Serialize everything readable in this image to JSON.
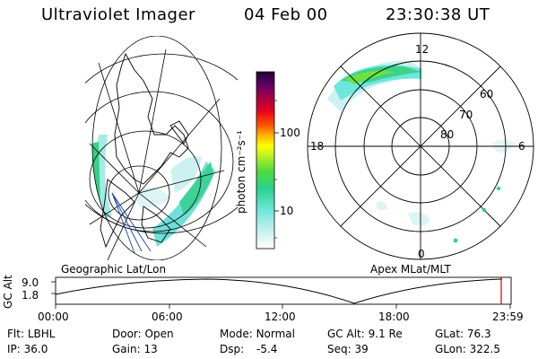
{
  "header": {
    "instrument": "Ultraviolet Imager",
    "date": "04 Feb 00",
    "time": "23:30:38 UT"
  },
  "left_panel": {
    "label": "Geographic Lat/Lon"
  },
  "right_panel": {
    "label": "Apex MLat/MLT",
    "mlt_labels": {
      "top": "12",
      "left": "18",
      "right": "6",
      "bottom": "0"
    },
    "lat_labels": [
      "60",
      "70",
      "80"
    ]
  },
  "colorbar": {
    "unit": "photon cm⁻²s⁻¹",
    "ticks": [
      "100",
      "10"
    ],
    "colors": [
      "#ffffff",
      "#c8f0f0",
      "#6ee6dc",
      "#28d28c",
      "#50dc3c",
      "#b4f02a",
      "#ffff00",
      "#ffb400",
      "#ff5000",
      "#e6001e",
      "#a00046",
      "#5a0064",
      "#1e0032"
    ]
  },
  "timeline": {
    "y_label": "GC Alt",
    "y_ticks": [
      "9.0",
      "1.8"
    ],
    "x_ticks": [
      "00:00",
      "06:00",
      "12:00",
      "18:00",
      "23:59"
    ],
    "current_marker_color": "#cc0000"
  },
  "info": {
    "row1": [
      {
        "key": "Flt:",
        "value": "LBHL"
      },
      {
        "key": "Door:",
        "value": "Open"
      },
      {
        "key": "Mode:",
        "value": "Normal"
      },
      {
        "key": "GC Alt:",
        "value": "9.1 Re"
      },
      {
        "key": "GLat:",
        "value": "76.3"
      }
    ],
    "row2": [
      {
        "key": "IP:",
        "value": "36.0"
      },
      {
        "key": "Gain:",
        "value": "13"
      },
      {
        "key": "Dsp:",
        "value": "-5.4"
      },
      {
        "key": "Seq:",
        "value": "39"
      },
      {
        "key": "GLon:",
        "value": "322.5"
      }
    ]
  }
}
